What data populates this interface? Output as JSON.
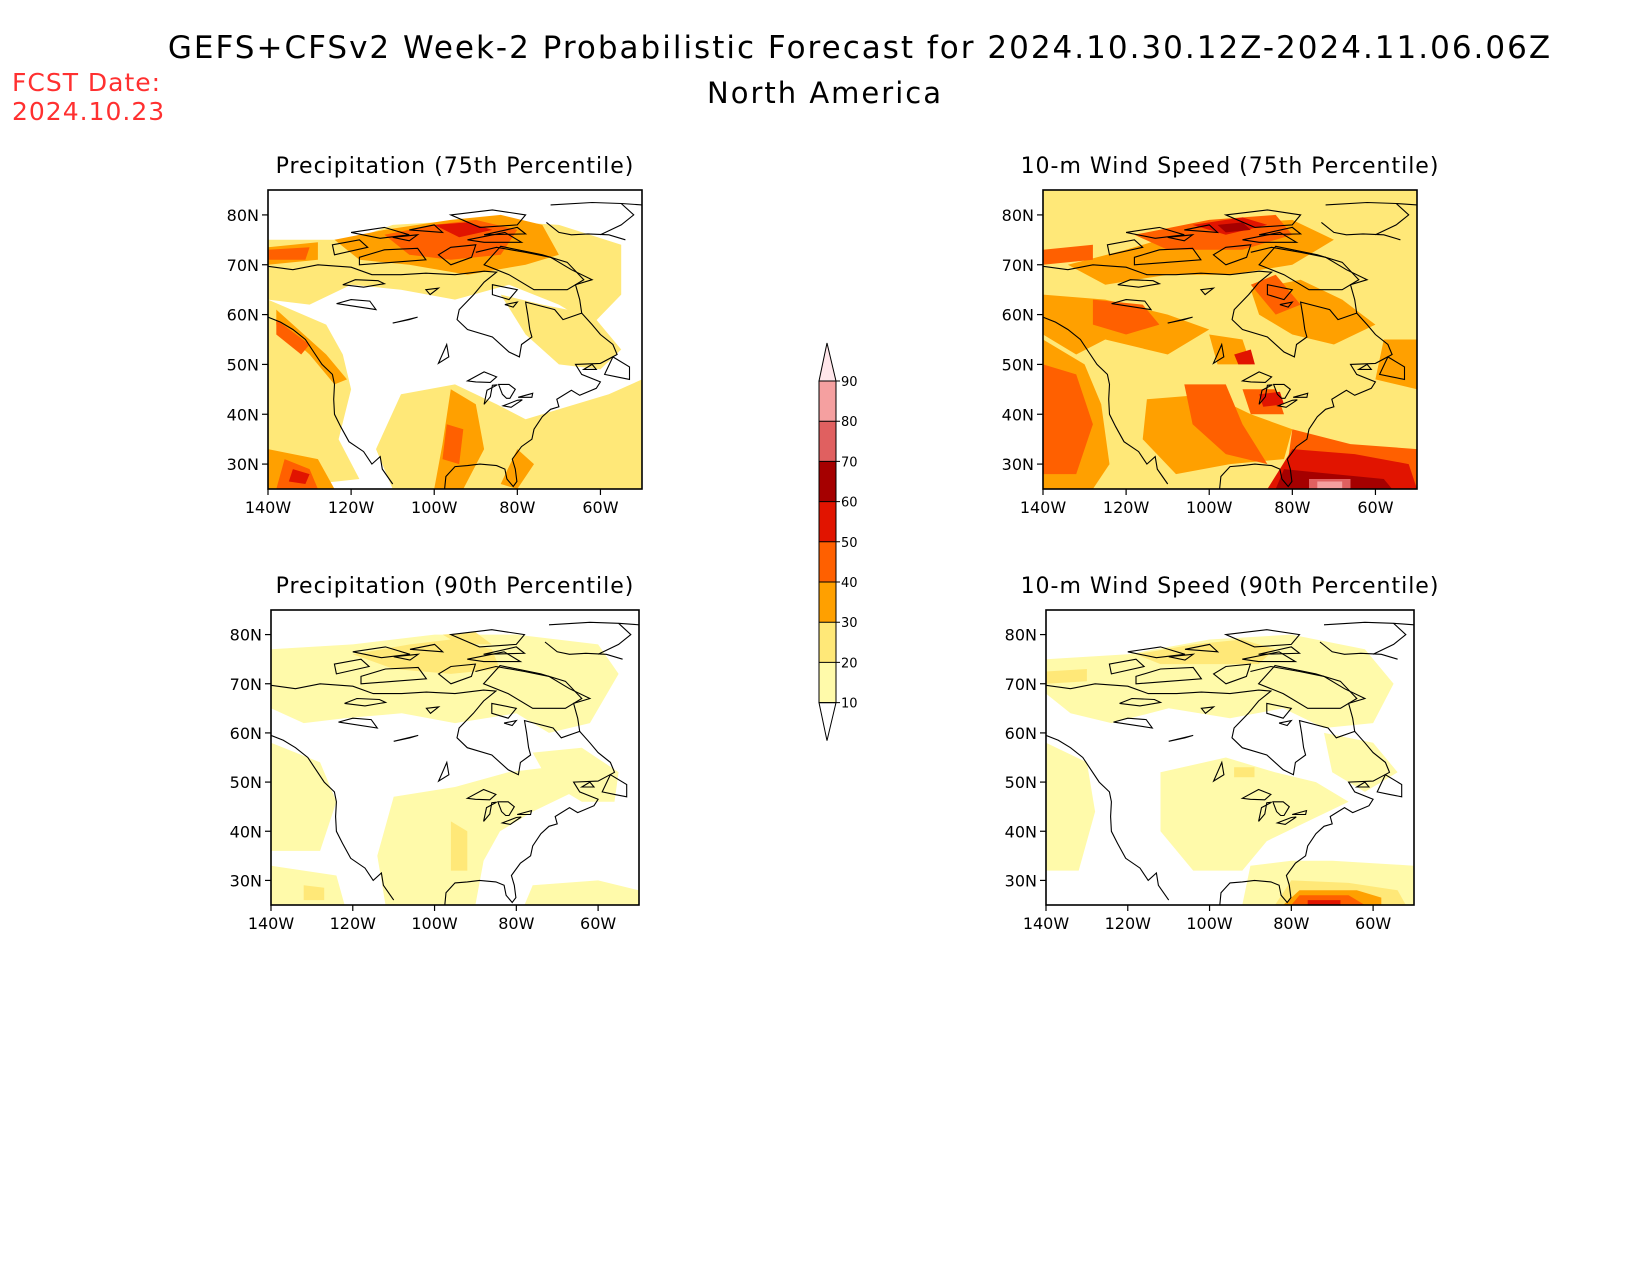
{
  "title": "GEFS+CFSv2 Week-2 Probabilistic Forecast for 2024.10.30.12Z-2024.11.06.06Z",
  "subtitle": "North America",
  "forecast_date": {
    "label": "FCST Date:",
    "value": "2024.10.23"
  },
  "panels": [
    {
      "id": "precip75",
      "title": "Precipitation (75th Percentile)"
    },
    {
      "id": "wind75",
      "title": "10-m Wind Speed (75th Percentile)"
    },
    {
      "id": "precip90",
      "title": "Precipitation (90th Percentile)"
    },
    {
      "id": "wind90",
      "title": "10-m Wind Speed (90th Percentile)"
    }
  ],
  "axes": {
    "lon_ticks": [
      "140W",
      "120W",
      "100W",
      "80W",
      "60W"
    ],
    "lat_ticks": [
      "80N",
      "70N",
      "60N",
      "50N",
      "40N",
      "30N"
    ],
    "lon_range": [
      -140,
      -50
    ],
    "lat_range": [
      25,
      85
    ]
  },
  "colorbar": {
    "ticks": [
      "10",
      "20",
      "30",
      "40",
      "50",
      "60",
      "70",
      "80",
      "90"
    ],
    "colors": [
      "#fffaaa",
      "#ffe878",
      "#ffa000",
      "#ff6000",
      "#e11400",
      "#a50000",
      "#e06060",
      "#f5a0a0",
      "#ffe6ea"
    ]
  }
}
